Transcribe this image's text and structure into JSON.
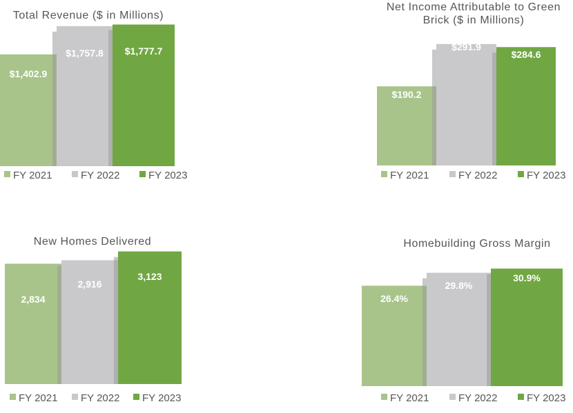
{
  "colors": {
    "fy2021": "#a8c48a",
    "fy2022": "#c9c9cb",
    "fy2023": "#70a743",
    "shadow": "#9a9a9a",
    "text": "#555555"
  },
  "chart_data": [
    {
      "type": "bar",
      "title_lines": [
        "Total Revenue ($ in Millions)"
      ],
      "categories": [
        "FY 2021",
        "FY 2022",
        "FY 2023"
      ],
      "values": [
        1402.9,
        1757.8,
        1777.7
      ],
      "labels": [
        "$1,402.9",
        "$1,757.8",
        "$1,777.7"
      ],
      "ylim": [
        0,
        1800
      ],
      "legend": [
        "FY 2021",
        "FY 2022",
        "FY 2023"
      ],
      "legend_position": "bottom"
    },
    {
      "type": "bar",
      "title_lines": [
        "Net Income Attributable to Green",
        "Brick ($ in Millions)"
      ],
      "categories": [
        "FY 2021",
        "FY 2022",
        "FY 2023"
      ],
      "values": [
        190.2,
        291.9,
        284.6
      ],
      "labels": [
        "$190.2",
        "$291.9",
        "$284.6"
      ],
      "ylim": [
        0,
        300
      ],
      "legend": [
        "FY 2021",
        "FY 2022",
        "FY 2023"
      ],
      "legend_position": "bottom"
    },
    {
      "type": "bar",
      "title_lines": [
        "New Homes Delivered"
      ],
      "categories": [
        "FY 2021",
        "FY 2022",
        "FY 2023"
      ],
      "values": [
        2834,
        2916,
        3123
      ],
      "labels": [
        "2,834",
        "2,916",
        "3,123"
      ],
      "ylim": [
        0,
        3150
      ],
      "legend": [
        "FY 2021",
        "FY 2022",
        "FY 2023"
      ],
      "legend_position": "bottom"
    },
    {
      "type": "bar",
      "title_lines": [
        "Homebuilding Gross Margin"
      ],
      "categories": [
        "FY 2021",
        "FY 2022",
        "FY 2023"
      ],
      "values": [
        26.4,
        29.8,
        30.9
      ],
      "labels": [
        "26.4%",
        "29.8%",
        "30.9%"
      ],
      "ylim": [
        0,
        31
      ],
      "legend": [
        "FY 2021",
        "FY 2022",
        "FY 2023"
      ],
      "legend_position": "bottom"
    }
  ]
}
